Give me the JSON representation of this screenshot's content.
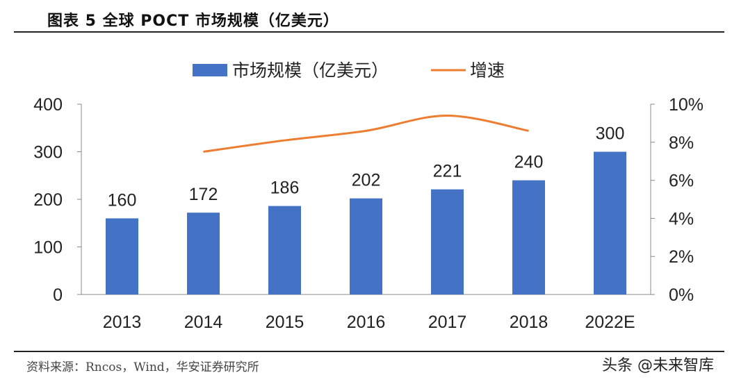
{
  "header": {
    "title": "图表 5   全球 POCT 市场规模（亿美元）"
  },
  "footer": {
    "source": "资料来源：Rncos，Wind，华安证券研究所",
    "watermark": "头条 @未来智库"
  },
  "chart_data": {
    "type": "bar+line",
    "categories": [
      "2013",
      "2014",
      "2015",
      "2016",
      "2017",
      "2018",
      "2022E"
    ],
    "series": [
      {
        "name": "市场规模（亿美元）",
        "type": "bar",
        "axis": "left",
        "color": "#4472C4",
        "values": [
          160,
          172,
          186,
          202,
          221,
          240,
          300
        ],
        "data_labels": [
          "160",
          "172",
          "186",
          "202",
          "221",
          "240",
          "300"
        ]
      },
      {
        "name": "增速",
        "type": "line",
        "axis": "right",
        "color": "#ED7D31",
        "values": [
          null,
          7.5,
          8.1,
          8.6,
          9.4,
          8.6,
          null
        ]
      }
    ],
    "left_axis": {
      "ylim": [
        0,
        400
      ],
      "ticks": [
        "0",
        "100",
        "200",
        "300",
        "400"
      ]
    },
    "right_axis": {
      "ylim": [
        0,
        10
      ],
      "ticks": [
        "0%",
        "2%",
        "4%",
        "6%",
        "8%",
        "10%"
      ]
    },
    "legend": "top",
    "grid": false
  }
}
